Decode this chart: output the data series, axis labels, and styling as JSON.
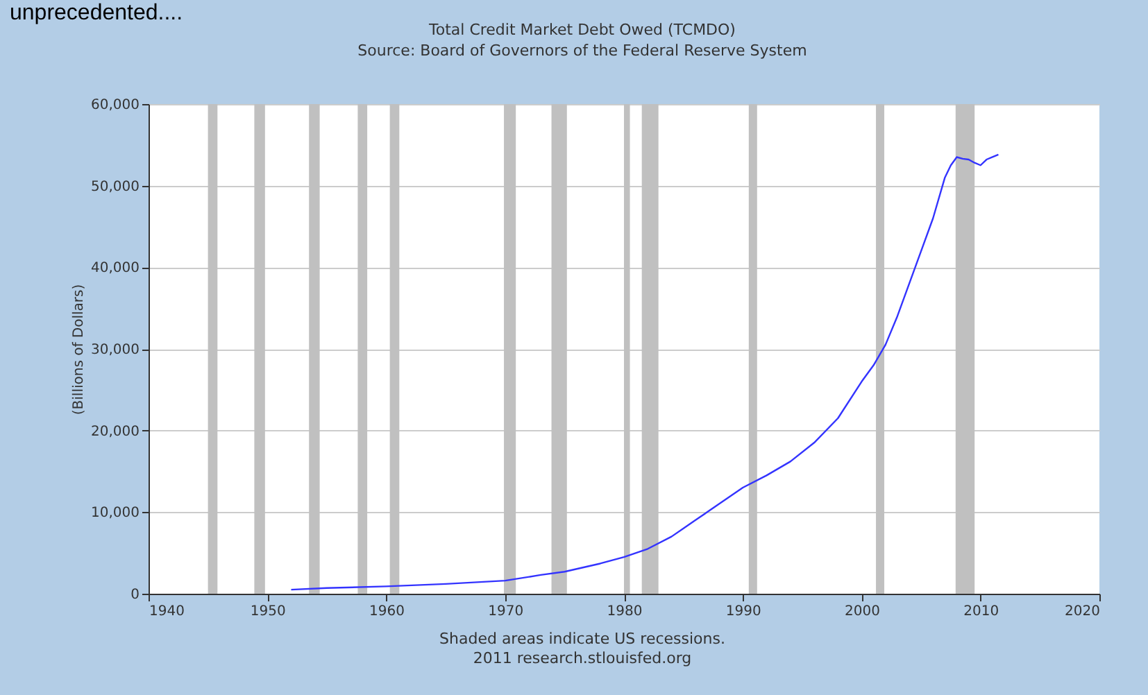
{
  "chart_data": {
    "type": "line",
    "title": "Total Credit Market Debt Owed (TCMDO)",
    "subtitle": "Source: Board of Governors of the Federal Reserve System",
    "ylabel": "(Billions of Dollars)",
    "annotations": [
      "unprecedented....",
      "Shaded areas indicate US recessions.",
      "2011 research.stlouisfed.org"
    ],
    "series": [
      {
        "color": "#3333ff",
        "x": [
          1952,
          1955,
          1960,
          1965,
          1970,
          1973,
          1975,
          1978,
          1980,
          1982,
          1984,
          1986,
          1988,
          1990,
          1992,
          1994,
          1996,
          1998,
          2000,
          2001,
          2002,
          2003,
          2004,
          2005,
          2006,
          2007,
          2007.5,
          2008,
          2008.5,
          2009,
          2009.5,
          2010,
          2010.5,
          2011,
          2011.5
        ],
        "values": [
          500,
          700,
          900,
          1200,
          1600,
          2300,
          2700,
          3700,
          4500,
          5500,
          7000,
          9000,
          11000,
          13000,
          14500,
          16200,
          18500,
          21500,
          26000,
          28000,
          30500,
          34000,
          38000,
          42000,
          46000,
          51000,
          52500,
          53500,
          53300,
          53200,
          52800,
          52500,
          53200,
          53500,
          53800
        ]
      }
    ],
    "xlim": [
      1940,
      2020
    ],
    "xticks": [
      1940,
      1950,
      1960,
      1970,
      1980,
      1990,
      2000,
      2010,
      2020
    ],
    "ylim": [
      0,
      60000
    ],
    "yticks": [
      0,
      {
        "value": 10000,
        "label": "10,000"
      },
      {
        "value": 20000,
        "label": "20,000"
      },
      {
        "value": 30000,
        "label": "30,000"
      },
      {
        "value": 40000,
        "label": "40,000"
      },
      {
        "value": 50000,
        "label": "50,000"
      },
      {
        "value": 60000,
        "label": "60,000"
      }
    ],
    "grid": "y",
    "bands": [
      {
        "axis": "x",
        "from": 1945.0,
        "to": 1945.8,
        "color": "#c0c0c0"
      },
      {
        "axis": "x",
        "from": 1948.9,
        "to": 1949.8,
        "color": "#c0c0c0"
      },
      {
        "axis": "x",
        "from": 1953.5,
        "to": 1954.4,
        "color": "#c0c0c0"
      },
      {
        "axis": "x",
        "from": 1957.6,
        "to": 1958.4,
        "color": "#c0c0c0"
      },
      {
        "axis": "x",
        "from": 1960.3,
        "to": 1961.1,
        "color": "#c0c0c0"
      },
      {
        "axis": "x",
        "from": 1969.9,
        "to": 1970.9,
        "color": "#c0c0c0"
      },
      {
        "axis": "x",
        "from": 1973.9,
        "to": 1975.2,
        "color": "#c0c0c0"
      },
      {
        "axis": "x",
        "from": 1980.0,
        "to": 1980.5,
        "color": "#c0c0c0"
      },
      {
        "axis": "x",
        "from": 1981.5,
        "to": 1982.9,
        "color": "#c0c0c0"
      },
      {
        "axis": "x",
        "from": 1990.5,
        "to": 1991.2,
        "color": "#c0c0c0"
      },
      {
        "axis": "x",
        "from": 2001.2,
        "to": 2001.9,
        "color": "#c0c0c0"
      },
      {
        "axis": "x",
        "from": 2007.9,
        "to": 2009.5,
        "color": "#c0c0c0"
      }
    ]
  }
}
